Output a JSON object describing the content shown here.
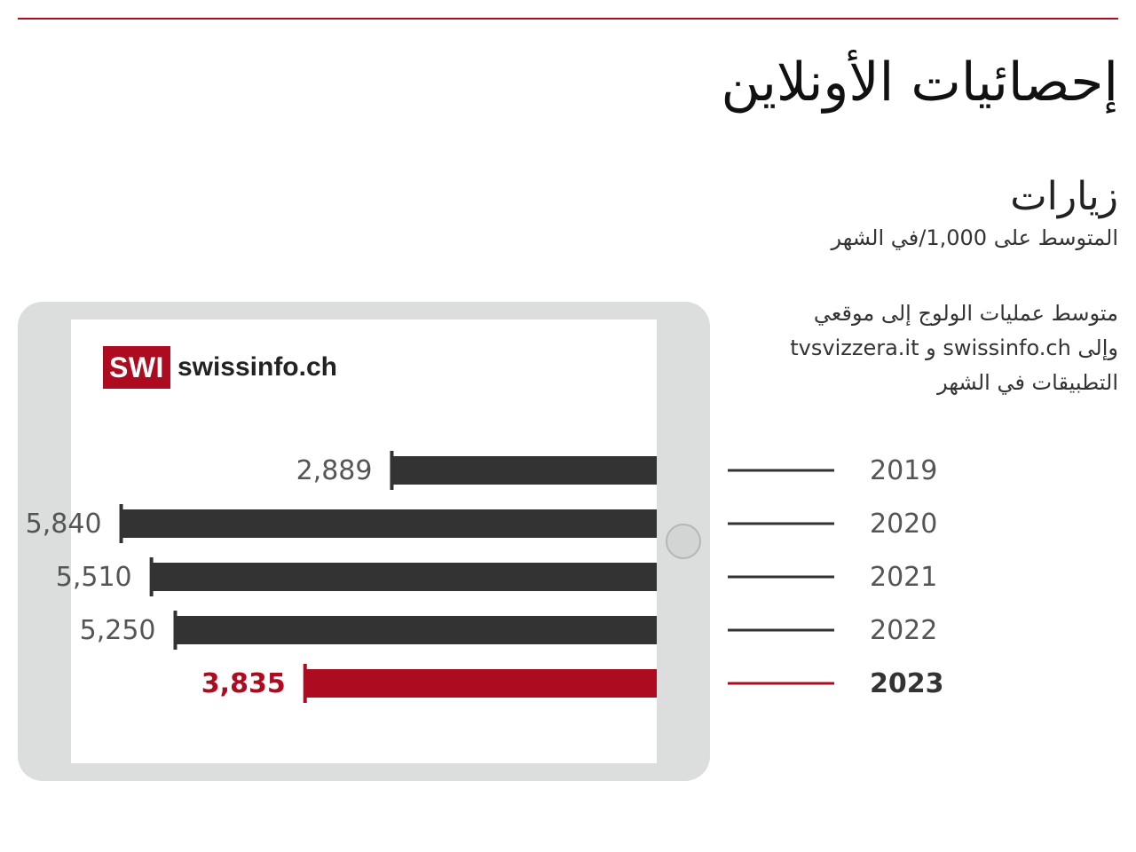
{
  "header": {
    "title": "إحصائيات الأونلاين",
    "section_title": "زيارات",
    "subtitle": "المتوسط على 1,000/في الشهر",
    "description_lines": [
      "متوسط عمليات الولوج إلى موقعي",
      "وإلى swissinfo.ch و tvsvizzera.it",
      "التطبيقات في الشهر"
    ]
  },
  "logo": {
    "mark": "SWI",
    "wordmark": "swissinfo.ch"
  },
  "colors": {
    "accent": "#ad0b1f",
    "bar": "#333333",
    "frame": "#dcdddd"
  },
  "chart_data": {
    "type": "bar",
    "orientation": "horizontal",
    "direction": "right-to-left",
    "categories": [
      "2019",
      "2020",
      "2021",
      "2022",
      "2023"
    ],
    "values": [
      2889,
      5840,
      5510,
      5250,
      3835
    ],
    "value_labels": [
      "2,889",
      "5,840",
      "5,510",
      "5,250",
      "3,835"
    ],
    "highlight": "2023",
    "xlim": [
      0,
      6000
    ],
    "grid": false
  }
}
